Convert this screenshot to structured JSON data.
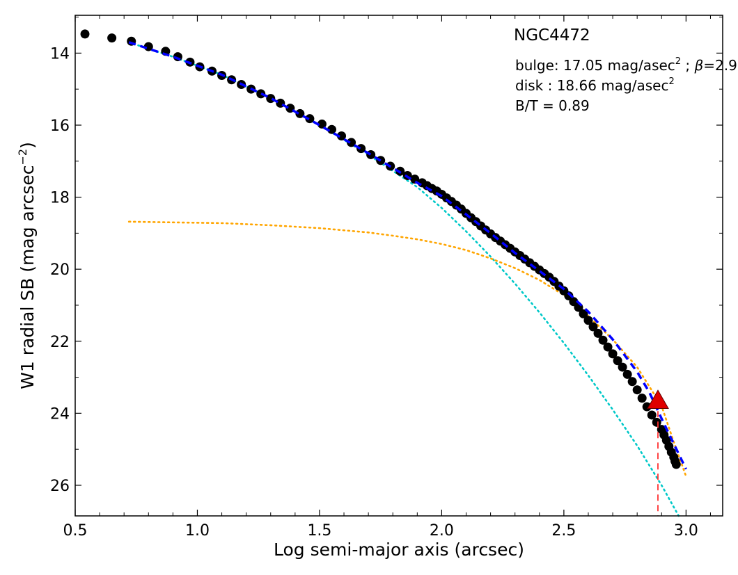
{
  "chart_data": {
    "type": "scatter",
    "title": "NGC4472",
    "xlabel": "Log semi-major axis (arcsec)",
    "ylabel": "W1 radial SB (mag arcsec",
    "ylabel_exponent": "−2",
    "ylabel_close": ")",
    "xlim": [
      0.5,
      3.15
    ],
    "ylim": [
      26.85,
      12.95
    ],
    "y_inverted": true,
    "xticks": [
      0.5,
      1.0,
      1.5,
      2.0,
      2.5,
      3.0
    ],
    "xtick_labels": [
      "0.5",
      "1.0",
      "1.5",
      "2.0",
      "2.5",
      "3.0"
    ],
    "yticks": [
      14,
      16,
      18,
      20,
      22,
      24,
      26
    ],
    "ytick_labels": [
      "14",
      "16",
      "18",
      "20",
      "22",
      "24",
      "26"
    ],
    "grid": false,
    "annotations": {
      "bulge_prefix": "bulge: 17.05 mag/asec",
      "bulge_exp": "2",
      "bulge_sep": " ; ",
      "beta_symbol": "β",
      "beta_value": "=2.9",
      "disk_prefix": "disk  : 18.66 mag/asec",
      "disk_exp": "2",
      "bt": "B/T = 0.89"
    },
    "series": [
      {
        "kind": "observed",
        "color": "#000000",
        "x": [
          0.54,
          0.65,
          0.73,
          0.8,
          0.87,
          0.92,
          0.97,
          1.01,
          1.06,
          1.1,
          1.14,
          1.18,
          1.22,
          1.26,
          1.3,
          1.34,
          1.38,
          1.42,
          1.46,
          1.51,
          1.55,
          1.59,
          1.63,
          1.67,
          1.71,
          1.75,
          1.79,
          1.83,
          1.86,
          1.89,
          1.92,
          1.94,
          1.96,
          1.98,
          2.0,
          2.02,
          2.04,
          2.06,
          2.08,
          2.1,
          2.12,
          2.14,
          2.16,
          2.18,
          2.2,
          2.22,
          2.24,
          2.26,
          2.28,
          2.3,
          2.32,
          2.34,
          2.36,
          2.38,
          2.4,
          2.42,
          2.44,
          2.46,
          2.48,
          2.5,
          2.52,
          2.54,
          2.56,
          2.58,
          2.6,
          2.62,
          2.64,
          2.66,
          2.68,
          2.7,
          2.72,
          2.74,
          2.76,
          2.78,
          2.8,
          2.82,
          2.84,
          2.86,
          2.88,
          2.9,
          2.91,
          2.92,
          2.93,
          2.94,
          2.95,
          2.955,
          2.96
        ],
        "y": [
          13.47,
          13.58,
          13.67,
          13.82,
          13.95,
          14.1,
          14.25,
          14.38,
          14.5,
          14.62,
          14.74,
          14.87,
          15.0,
          15.13,
          15.26,
          15.39,
          15.53,
          15.68,
          15.82,
          15.97,
          16.12,
          16.3,
          16.48,
          16.65,
          16.82,
          16.98,
          17.14,
          17.28,
          17.4,
          17.5,
          17.6,
          17.68,
          17.76,
          17.83,
          17.92,
          18.02,
          18.12,
          18.22,
          18.33,
          18.45,
          18.57,
          18.68,
          18.8,
          18.91,
          19.02,
          19.12,
          19.22,
          19.32,
          19.42,
          19.52,
          19.62,
          19.72,
          19.82,
          19.92,
          20.02,
          20.12,
          20.22,
          20.34,
          20.47,
          20.6,
          20.74,
          20.9,
          21.06,
          21.24,
          21.42,
          21.6,
          21.78,
          21.97,
          22.16,
          22.35,
          22.54,
          22.72,
          22.92,
          23.12,
          23.35,
          23.58,
          23.82,
          24.05,
          24.25,
          24.45,
          24.6,
          24.75,
          24.92,
          25.08,
          25.22,
          25.33,
          25.42
        ]
      },
      {
        "kind": "total-fit",
        "color": "#0000ff",
        "x": [
          0.72,
          0.9,
          1.1,
          1.3,
          1.5,
          1.7,
          1.9,
          2.0,
          2.1,
          2.2,
          2.3,
          2.4,
          2.5,
          2.6,
          2.7,
          2.8,
          2.85,
          2.9,
          2.95,
          3.0
        ],
        "y": [
          13.7,
          14.1,
          14.6,
          15.25,
          16.0,
          16.78,
          17.6,
          17.97,
          18.48,
          19.0,
          19.55,
          20.05,
          20.55,
          21.18,
          21.95,
          22.85,
          23.42,
          24.15,
          24.85,
          25.55
        ]
      },
      {
        "kind": "bulge-component",
        "color": "#00c8c8",
        "x": [
          0.72,
          0.9,
          1.1,
          1.3,
          1.5,
          1.7,
          1.9,
          2.0,
          2.1,
          2.2,
          2.3,
          2.4,
          2.5,
          2.6,
          2.7,
          2.8,
          2.9,
          2.97
        ],
        "y": [
          13.7,
          14.1,
          14.6,
          15.25,
          16.0,
          16.82,
          17.72,
          18.3,
          18.95,
          19.65,
          20.4,
          21.2,
          22.05,
          22.95,
          23.9,
          24.9,
          26.0,
          26.85
        ]
      },
      {
        "kind": "disk-component",
        "color": "#ffa500",
        "x": [
          0.72,
          0.9,
          1.1,
          1.3,
          1.5,
          1.7,
          1.8,
          1.9,
          2.0,
          2.1,
          2.2,
          2.3,
          2.4,
          2.5,
          2.55,
          2.6,
          2.7,
          2.8,
          2.9,
          2.95,
          3.0
        ],
        "y": [
          18.68,
          18.7,
          18.72,
          18.78,
          18.86,
          18.98,
          19.07,
          19.17,
          19.3,
          19.47,
          19.7,
          19.97,
          20.3,
          20.72,
          20.98,
          21.3,
          21.95,
          22.72,
          23.8,
          24.8,
          25.75
        ]
      }
    ],
    "marker": {
      "kind": "limit-triangle",
      "color": "#e00000",
      "x": 2.885,
      "y": 23.65
    },
    "vline": {
      "color": "#ff3030",
      "x": 2.885
    }
  }
}
